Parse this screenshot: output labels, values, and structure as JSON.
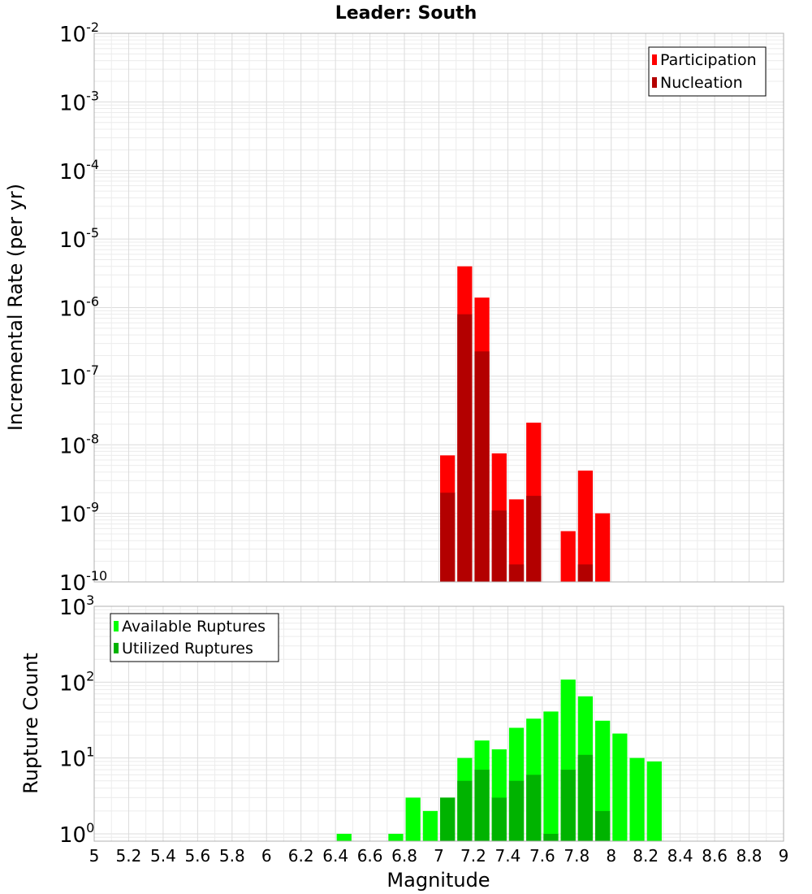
{
  "chart_data": [
    {
      "type": "bar",
      "title": "Leader: South",
      "ylabel": "Incremental Rate (per yr)",
      "xlabel": "",
      "xlim": [
        5,
        9
      ],
      "ylim": [
        1e-10,
        0.01
      ],
      "yscale": "log",
      "y_decades": [
        {
          "base": "10",
          "exp": "-10"
        },
        {
          "base": "10",
          "exp": "-9"
        },
        {
          "base": "10",
          "exp": "-8"
        },
        {
          "base": "10",
          "exp": "-7"
        },
        {
          "base": "10",
          "exp": "-6"
        },
        {
          "base": "10",
          "exp": "-5"
        },
        {
          "base": "10",
          "exp": "-4"
        },
        {
          "base": "10",
          "exp": "-3"
        },
        {
          "base": "10",
          "exp": "-2"
        }
      ],
      "grid": true,
      "legend_position": "top-right",
      "bin_width": 0.1,
      "series": [
        {
          "name": "Participation",
          "color": "#ff0000",
          "x": [
            7.05,
            7.15,
            7.25,
            7.35,
            7.45,
            7.55,
            7.75,
            7.85,
            7.95
          ],
          "values": [
            7e-09,
            4e-06,
            1.4e-06,
            7.5e-09,
            1.6e-09,
            2.1e-08,
            5.5e-10,
            4.2e-09,
            1e-09
          ]
        },
        {
          "name": "Nucleation",
          "color": "#b30000",
          "x": [
            7.05,
            7.15,
            7.25,
            7.35,
            7.45,
            7.55,
            7.85
          ],
          "values": [
            2e-09,
            8e-07,
            2.3e-07,
            1.1e-09,
            1.8e-10,
            1.8e-09,
            1.8e-10
          ]
        }
      ]
    },
    {
      "type": "bar",
      "title": "",
      "ylabel": "Rupture Count",
      "xlabel": "Magnitude",
      "xlim": [
        5,
        9
      ],
      "ylim": [
        0.8,
        1000
      ],
      "yscale": "log",
      "y_decades": [
        {
          "base": "10",
          "exp": "0"
        },
        {
          "base": "10",
          "exp": "1"
        },
        {
          "base": "10",
          "exp": "2"
        },
        {
          "base": "10",
          "exp": "3"
        }
      ],
      "x_ticks": [
        "5",
        "5.2",
        "5.4",
        "5.6",
        "5.8",
        "6",
        "6.2",
        "6.4",
        "6.6",
        "6.8",
        "7",
        "7.2",
        "7.4",
        "7.6",
        "7.8",
        "8",
        "8.2",
        "8.4",
        "8.6",
        "8.8",
        "9"
      ],
      "grid": true,
      "legend_position": "top-left",
      "bin_width": 0.1,
      "series": [
        {
          "name": "Available Ruptures",
          "color": "#00ff00",
          "x": [
            6.45,
            6.75,
            6.85,
            6.95,
            7.05,
            7.15,
            7.25,
            7.35,
            7.45,
            7.55,
            7.65,
            7.75,
            7.85,
            7.95,
            8.05,
            8.15,
            8.25
          ],
          "values": [
            1,
            1,
            3,
            2,
            3,
            10,
            17,
            13,
            25,
            33,
            41,
            108,
            65,
            31,
            21,
            10,
            9
          ]
        },
        {
          "name": "Utilized Ruptures",
          "color": "#00b300",
          "x": [
            7.05,
            7.15,
            7.25,
            7.35,
            7.45,
            7.55,
            7.65,
            7.75,
            7.85,
            7.95
          ],
          "values": [
            3,
            5,
            7,
            3,
            5,
            6,
            1,
            7,
            11,
            2
          ]
        }
      ]
    }
  ]
}
